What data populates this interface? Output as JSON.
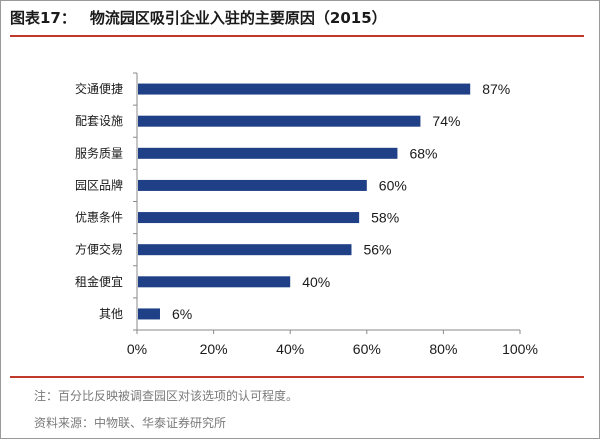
{
  "header": {
    "figure_label": "图表17：",
    "title": "物流园区吸引企业入驻的主要原因（2015）"
  },
  "colors": {
    "bar": "#1f3f86",
    "rule": "#c0392b",
    "note_text": "#7a7a7a"
  },
  "chart_data": {
    "type": "bar",
    "orientation": "horizontal",
    "categories": [
      "交通便捷",
      "配套设施",
      "服务质量",
      "园区品牌",
      "优惠条件",
      "方便交易",
      "租金便宜",
      "其他"
    ],
    "values": [
      87,
      74,
      68,
      60,
      58,
      56,
      40,
      6
    ],
    "value_labels": [
      "87%",
      "74%",
      "68%",
      "60%",
      "58%",
      "56%",
      "40%",
      "6%"
    ],
    "xlim": [
      0,
      100
    ],
    "x_ticks": [
      0,
      20,
      40,
      60,
      80,
      100
    ],
    "x_tick_labels": [
      "0%",
      "20%",
      "40%",
      "60%",
      "80%",
      "100%"
    ],
    "grid": false,
    "legend": "none"
  },
  "footer": {
    "note": "注：百分比反映被调查园区对该选项的认可程度。",
    "source": "资料来源：中物联、华泰证券研究所"
  }
}
